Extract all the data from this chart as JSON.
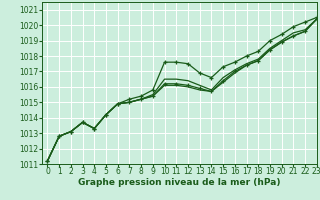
{
  "bg_color": "#cceedd",
  "grid_color": "#aaddcc",
  "line_color": "#1a5c1a",
  "xlabel": "Graphe pression niveau de la mer (hPa)",
  "xlabel_fontsize": 6.5,
  "xlim": [
    -0.5,
    23
  ],
  "ylim": [
    1011,
    1021.5
  ],
  "xticks": [
    0,
    1,
    2,
    3,
    4,
    5,
    6,
    7,
    8,
    9,
    10,
    11,
    12,
    13,
    14,
    15,
    16,
    17,
    18,
    19,
    20,
    21,
    22,
    23
  ],
  "yticks": [
    1011,
    1012,
    1013,
    1014,
    1015,
    1016,
    1017,
    1018,
    1019,
    1020,
    1021
  ],
  "series": [
    [
      1011.2,
      1012.8,
      1013.1,
      1013.7,
      1013.3,
      1014.2,
      1014.9,
      1015.2,
      1015.4,
      1015.8,
      1017.6,
      1017.6,
      1017.5,
      1016.9,
      1016.6,
      1017.3,
      1017.6,
      1018.0,
      1018.3,
      1019.0,
      1019.4,
      1019.9,
      1020.2,
      1020.5
    ],
    [
      1011.2,
      1012.8,
      1013.1,
      1013.7,
      1013.3,
      1014.2,
      1014.9,
      1015.0,
      1015.2,
      1015.5,
      1016.5,
      1016.5,
      1016.4,
      1016.1,
      1015.8,
      1016.6,
      1017.1,
      1017.5,
      1017.8,
      1018.5,
      1019.0,
      1019.5,
      1019.7,
      1020.4
    ],
    [
      1011.2,
      1012.8,
      1013.1,
      1013.7,
      1013.3,
      1014.2,
      1014.9,
      1015.0,
      1015.2,
      1015.4,
      1016.2,
      1016.2,
      1016.1,
      1015.9,
      1015.7,
      1016.4,
      1017.0,
      1017.4,
      1017.7,
      1018.4,
      1018.9,
      1019.3,
      1019.6,
      1020.4
    ],
    [
      1011.2,
      1012.8,
      1013.1,
      1013.7,
      1013.3,
      1014.2,
      1014.9,
      1015.0,
      1015.2,
      1015.4,
      1016.1,
      1016.1,
      1016.0,
      1015.8,
      1015.7,
      1016.3,
      1016.9,
      1017.4,
      1017.7,
      1018.4,
      1018.9,
      1019.3,
      1019.6,
      1020.4
    ]
  ],
  "marker_series": [
    0,
    2
  ],
  "tick_fontsize": 5.5
}
